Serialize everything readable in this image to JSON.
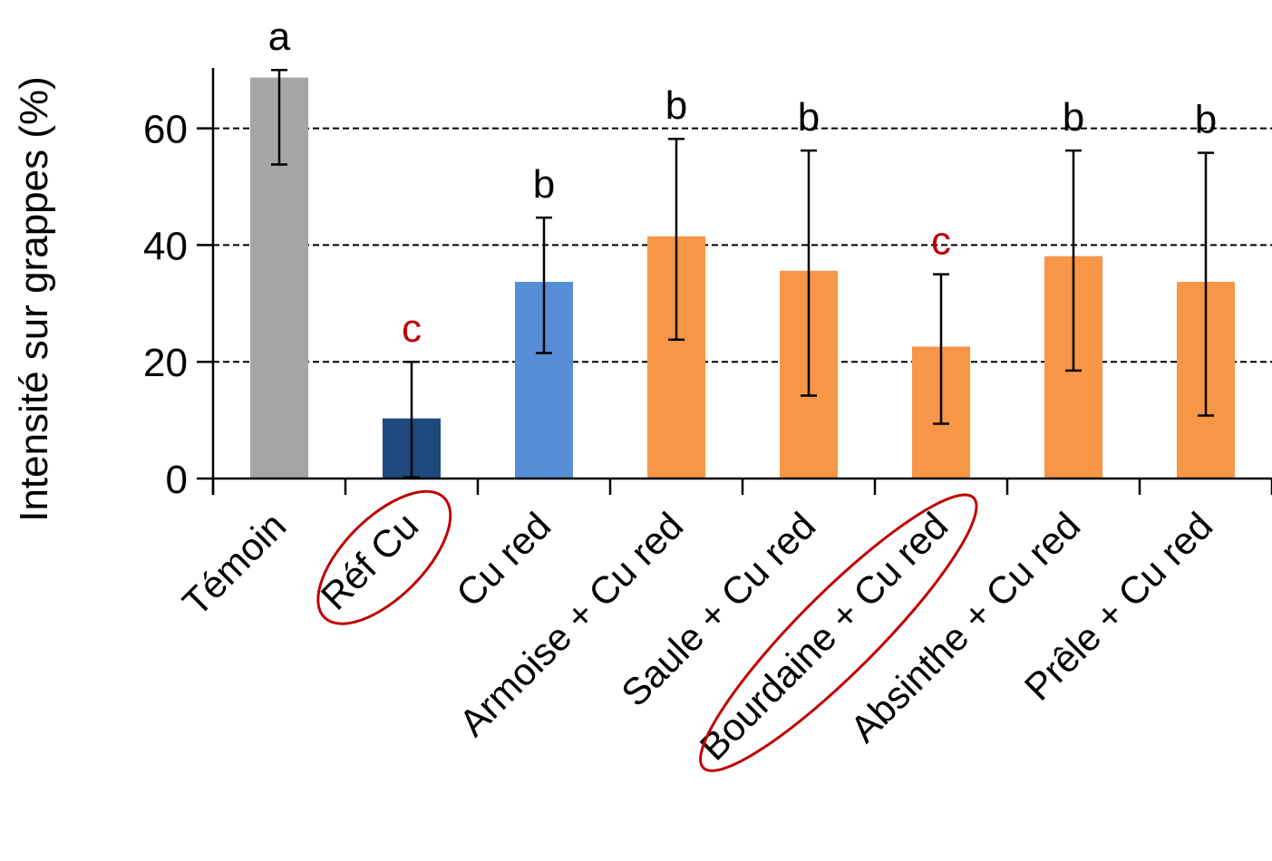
{
  "chart_data": {
    "type": "bar",
    "title": "",
    "xlabel": "",
    "ylabel": "Intensité sur grappes (%)",
    "ylim": [
      0,
      70
    ],
    "yticks": [
      0,
      20,
      40,
      60
    ],
    "grid": "horizontal dashed at 20, 40, 60",
    "categories": [
      "Témoin",
      "Réf Cu",
      "Cu red",
      "Armoise + Cu red",
      "Saule + Cu red",
      "Bourdaine  + Cu red",
      "Absinthe + Cu red",
      "Prêle + Cu red"
    ],
    "values": [
      68.7,
      10.3,
      33.7,
      41.5,
      35.6,
      22.6,
      38.1,
      33.7
    ],
    "error_low": [
      53.8,
      0.2,
      21.5,
      23.8,
      14.2,
      9.4,
      18.5,
      10.8
    ],
    "error_high": [
      70.0,
      20.0,
      44.7,
      58.2,
      56.2,
      35.0,
      56.2,
      55.8
    ],
    "significance": [
      "a",
      "c",
      "b",
      "b",
      "b",
      "c",
      "b",
      "b"
    ],
    "colors": [
      "#a6a6a6",
      "#1f497d",
      "#558ed5",
      "#f79646",
      "#f79646",
      "#f79646",
      "#f79646",
      "#f79646"
    ],
    "significance_colors": [
      "#000000",
      "#c00000",
      "#000000",
      "#000000",
      "#000000",
      "#c00000",
      "#000000",
      "#000000"
    ],
    "highlighted_categories": [
      "Réf Cu",
      "Bourdaine  + Cu red"
    ],
    "highlight_color": "#c00000"
  }
}
